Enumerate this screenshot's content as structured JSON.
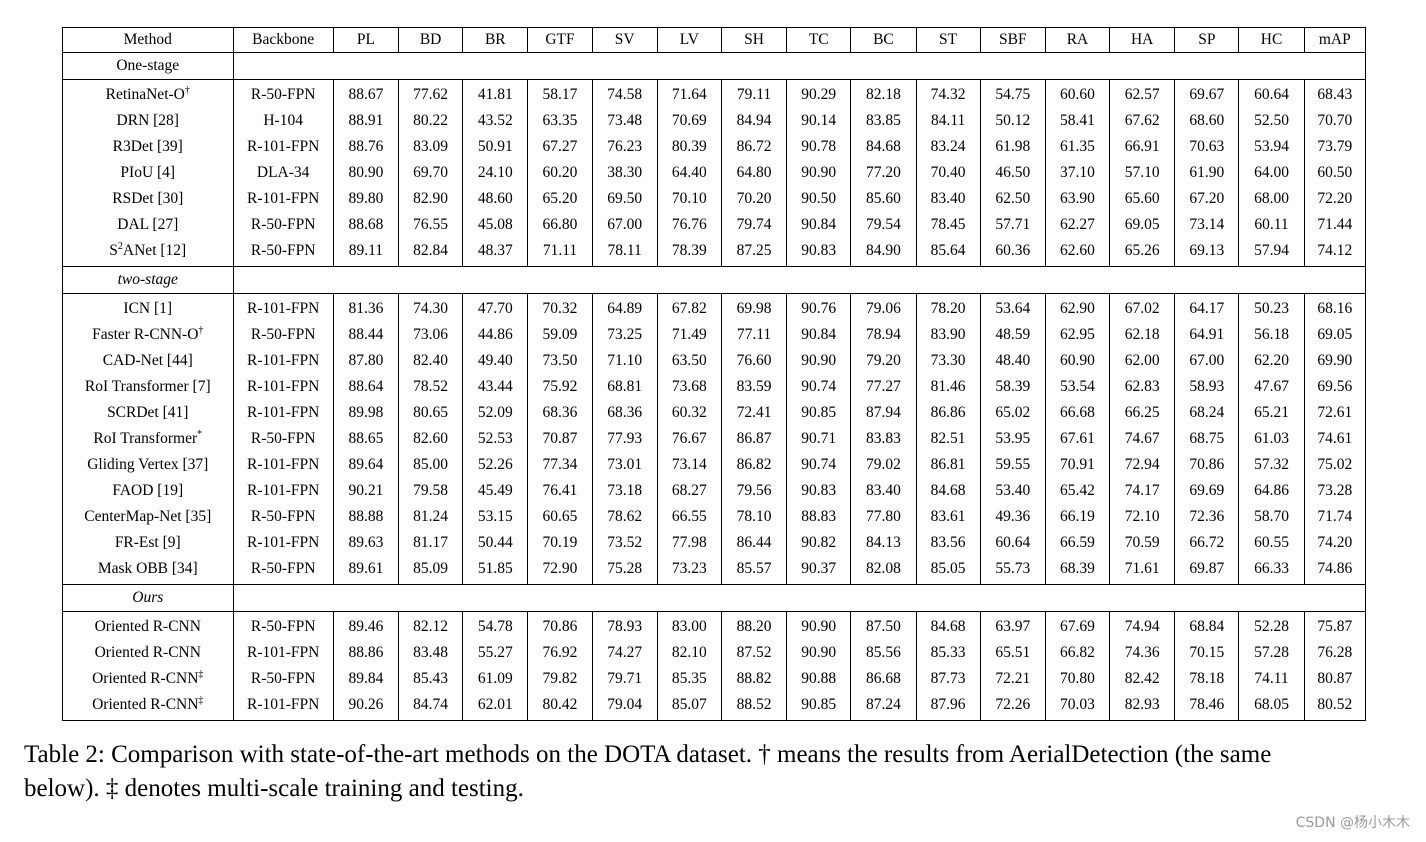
{
  "table": {
    "headers": [
      "Method",
      "Backbone",
      "PL",
      "BD",
      "BR",
      "GTF",
      "SV",
      "LV",
      "SH",
      "TC",
      "BC",
      "ST",
      "SBF",
      "RA",
      "HA",
      "SP",
      "HC",
      "mAP"
    ],
    "sections": [
      {
        "label": "One-stage",
        "italic": false,
        "rows": [
          {
            "method": "RetinaNet-O",
            "sup": "†",
            "backbone": "R-50-FPN",
            "values": [
              "88.67",
              "77.62",
              "41.81",
              "58.17",
              "74.58",
              "71.64",
              "79.11",
              "90.29",
              "82.18",
              "74.32",
              "54.75",
              "60.60",
              "62.57",
              "69.67",
              "60.64",
              "68.43"
            ],
            "bold": []
          },
          {
            "method": "DRN [28]",
            "sup": "",
            "backbone": "H-104",
            "values": [
              "88.91",
              "80.22",
              "43.52",
              "63.35",
              "73.48",
              "70.69",
              "84.94",
              "90.14",
              "83.85",
              "84.11",
              "50.12",
              "58.41",
              "67.62",
              "68.60",
              "52.50",
              "70.70"
            ],
            "bold": []
          },
          {
            "method": "R3Det [39]",
            "sup": "",
            "backbone": "R-101-FPN",
            "values": [
              "88.76",
              "83.09",
              "50.91",
              "67.27",
              "76.23",
              "80.39",
              "86.72",
              "90.78",
              "84.68",
              "83.24",
              "61.98",
              "61.35",
              "66.91",
              "70.63",
              "53.94",
              "73.79"
            ],
            "bold": []
          },
          {
            "method": "PIoU [4]",
            "sup": "",
            "backbone": "DLA-34",
            "values": [
              "80.90",
              "69.70",
              "24.10",
              "60.20",
              "38.30",
              "64.40",
              "64.80",
              "90.90",
              "77.20",
              "70.40",
              "46.50",
              "37.10",
              "57.10",
              "61.90",
              "64.00",
              "60.50"
            ],
            "bold": []
          },
          {
            "method": "RSDet [30]",
            "sup": "",
            "backbone": "R-101-FPN",
            "values": [
              "89.80",
              "82.90",
              "48.60",
              "65.20",
              "69.50",
              "70.10",
              "70.20",
              "90.50",
              "85.60",
              "83.40",
              "62.50",
              "63.90",
              "65.60",
              "67.20",
              "68.00",
              "72.20"
            ],
            "bold": []
          },
          {
            "method": "DAL [27]",
            "sup": "",
            "backbone": "R-50-FPN",
            "values": [
              "88.68",
              "76.55",
              "45.08",
              "66.80",
              "67.00",
              "76.76",
              "79.74",
              "90.84",
              "79.54",
              "78.45",
              "57.71",
              "62.27",
              "69.05",
              "73.14",
              "60.11",
              "71.44"
            ],
            "bold": []
          },
          {
            "method_pre": "S",
            "method_sup": "2",
            "method": "ANet [12]",
            "sup": "",
            "backbone": "R-50-FPN",
            "values": [
              "89.11",
              "82.84",
              "48.37",
              "71.11",
              "78.11",
              "78.39",
              "87.25",
              "90.83",
              "84.90",
              "85.64",
              "60.36",
              "62.60",
              "65.26",
              "69.13",
              "57.94",
              "74.12"
            ],
            "bold": []
          }
        ]
      },
      {
        "label": "two-stage",
        "italic": true,
        "rows": [
          {
            "method": "ICN [1]",
            "sup": "",
            "backbone": "R-101-FPN",
            "values": [
              "81.36",
              "74.30",
              "47.70",
              "70.32",
              "64.89",
              "67.82",
              "69.98",
              "90.76",
              "79.06",
              "78.20",
              "53.64",
              "62.90",
              "67.02",
              "64.17",
              "50.23",
              "68.16"
            ],
            "bold": []
          },
          {
            "method": "Faster R-CNN-O",
            "sup": "†",
            "backbone": "R-50-FPN",
            "values": [
              "88.44",
              "73.06",
              "44.86",
              "59.09",
              "73.25",
              "71.49",
              "77.11",
              "90.84",
              "78.94",
              "83.90",
              "48.59",
              "62.95",
              "62.18",
              "64.91",
              "56.18",
              "69.05"
            ],
            "bold": []
          },
          {
            "method": "CAD-Net [44]",
            "sup": "",
            "backbone": "R-101-FPN",
            "values": [
              "87.80",
              "82.40",
              "49.40",
              "73.50",
              "71.10",
              "63.50",
              "76.60",
              "90.90",
              "79.20",
              "73.30",
              "48.40",
              "60.90",
              "62.00",
              "67.00",
              "62.20",
              "69.90"
            ],
            "bold": []
          },
          {
            "method": "RoI Transformer [7]",
            "sup": "",
            "backbone": "R-101-FPN",
            "values": [
              "88.64",
              "78.52",
              "43.44",
              "75.92",
              "68.81",
              "73.68",
              "83.59",
              "90.74",
              "77.27",
              "81.46",
              "58.39",
              "53.54",
              "62.83",
              "58.93",
              "47.67",
              "69.56"
            ],
            "bold": []
          },
          {
            "method": "SCRDet [41]",
            "sup": "",
            "backbone": "R-101-FPN",
            "values": [
              "89.98",
              "80.65",
              "52.09",
              "68.36",
              "68.36",
              "60.32",
              "72.41",
              "90.85",
              "87.94",
              "86.86",
              "65.02",
              "66.68",
              "66.25",
              "68.24",
              "65.21",
              "72.61"
            ],
            "bold": [
              8
            ]
          },
          {
            "method": "RoI Transformer",
            "sup": "*",
            "backbone": "R-50-FPN",
            "values": [
              "88.65",
              "82.60",
              "52.53",
              "70.87",
              "77.93",
              "76.67",
              "86.87",
              "90.71",
              "83.83",
              "82.51",
              "53.95",
              "67.61",
              "74.67",
              "68.75",
              "61.03",
              "74.61"
            ],
            "bold": []
          },
          {
            "method": "Gliding Vertex [37]",
            "sup": "",
            "backbone": "R-101-FPN",
            "values": [
              "89.64",
              "85.00",
              "52.26",
              "77.34",
              "73.01",
              "73.14",
              "86.82",
              "90.74",
              "79.02",
              "86.81",
              "59.55",
              "70.91",
              "72.94",
              "70.86",
              "57.32",
              "75.02"
            ],
            "bold": []
          },
          {
            "method": "FAOD [19]",
            "sup": "",
            "backbone": "R-101-FPN",
            "values": [
              "90.21",
              "79.58",
              "45.49",
              "76.41",
              "73.18",
              "68.27",
              "79.56",
              "90.83",
              "83.40",
              "84.68",
              "53.40",
              "65.42",
              "74.17",
              "69.69",
              "64.86",
              "73.28"
            ],
            "bold": []
          },
          {
            "method": "CenterMap-Net [35]",
            "sup": "",
            "backbone": "R-50-FPN",
            "values": [
              "88.88",
              "81.24",
              "53.15",
              "60.65",
              "78.62",
              "66.55",
              "78.10",
              "88.83",
              "77.80",
              "83.61",
              "49.36",
              "66.19",
              "72.10",
              "72.36",
              "58.70",
              "71.74"
            ],
            "bold": []
          },
          {
            "method": "FR-Est [9]",
            "sup": "",
            "backbone": "R-101-FPN",
            "values": [
              "89.63",
              "81.17",
              "50.44",
              "70.19",
              "73.52",
              "77.98",
              "86.44",
              "90.82",
              "84.13",
              "83.56",
              "60.64",
              "66.59",
              "70.59",
              "66.72",
              "60.55",
              "74.20"
            ],
            "bold": []
          },
          {
            "method": "Mask OBB [34]",
            "sup": "",
            "backbone": "R-50-FPN",
            "values": [
              "89.61",
              "85.09",
              "51.85",
              "72.90",
              "75.28",
              "73.23",
              "85.57",
              "90.37",
              "82.08",
              "85.05",
              "55.73",
              "68.39",
              "71.61",
              "69.87",
              "66.33",
              "74.86"
            ],
            "bold": []
          }
        ]
      },
      {
        "label": "Ours",
        "italic": true,
        "rows": [
          {
            "method": "Oriented R-CNN",
            "sup": "",
            "backbone": "R-50-FPN",
            "values": [
              "89.46",
              "82.12",
              "54.78",
              "70.86",
              "78.93",
              "83.00",
              "88.20",
              "90.90",
              "87.50",
              "84.68",
              "63.97",
              "67.69",
              "74.94",
              "68.84",
              "52.28",
              "75.87"
            ],
            "bold": []
          },
          {
            "method": "Oriented R-CNN",
            "sup": "",
            "backbone": "R-101-FPN",
            "values": [
              "88.86",
              "83.48",
              "55.27",
              "76.92",
              "74.27",
              "82.10",
              "87.52",
              "90.90",
              "85.56",
              "85.33",
              "65.51",
              "66.82",
              "74.36",
              "70.15",
              "57.28",
              "76.28"
            ],
            "bold": [
              7
            ]
          },
          {
            "method": "Oriented R-CNN",
            "sup": "‡",
            "backbone": "R-50-FPN",
            "values": [
              "89.84",
              "85.43",
              "61.09",
              "79.82",
              "79.71",
              "85.35",
              "88.82",
              "90.88",
              "86.68",
              "87.73",
              "72.21",
              "70.80",
              "82.42",
              "78.18",
              "74.11",
              "80.87"
            ],
            "bold": [
              1,
              4,
              5,
              6,
              11,
              14,
              15
            ]
          },
          {
            "method": "Oriented R-CNN",
            "sup": "‡",
            "backbone": "R-101-FPN",
            "values": [
              "90.26",
              "84.74",
              "62.01",
              "80.42",
              "79.04",
              "85.07",
              "88.52",
              "90.85",
              "87.24",
              "87.96",
              "72.26",
              "70.03",
              "82.93",
              "78.46",
              "68.05",
              "80.52"
            ],
            "bold": [
              0,
              2,
              3,
              9,
              10,
              12,
              13
            ]
          }
        ]
      }
    ]
  },
  "caption": {
    "line1": "Table 2: Comparison with state-of-the-art methods on the DOTA dataset. † means the results from AerialDetection (the same",
    "line2": "below). ‡ denotes multi-scale training and testing."
  },
  "watermark": "CSDN @杨小木木"
}
